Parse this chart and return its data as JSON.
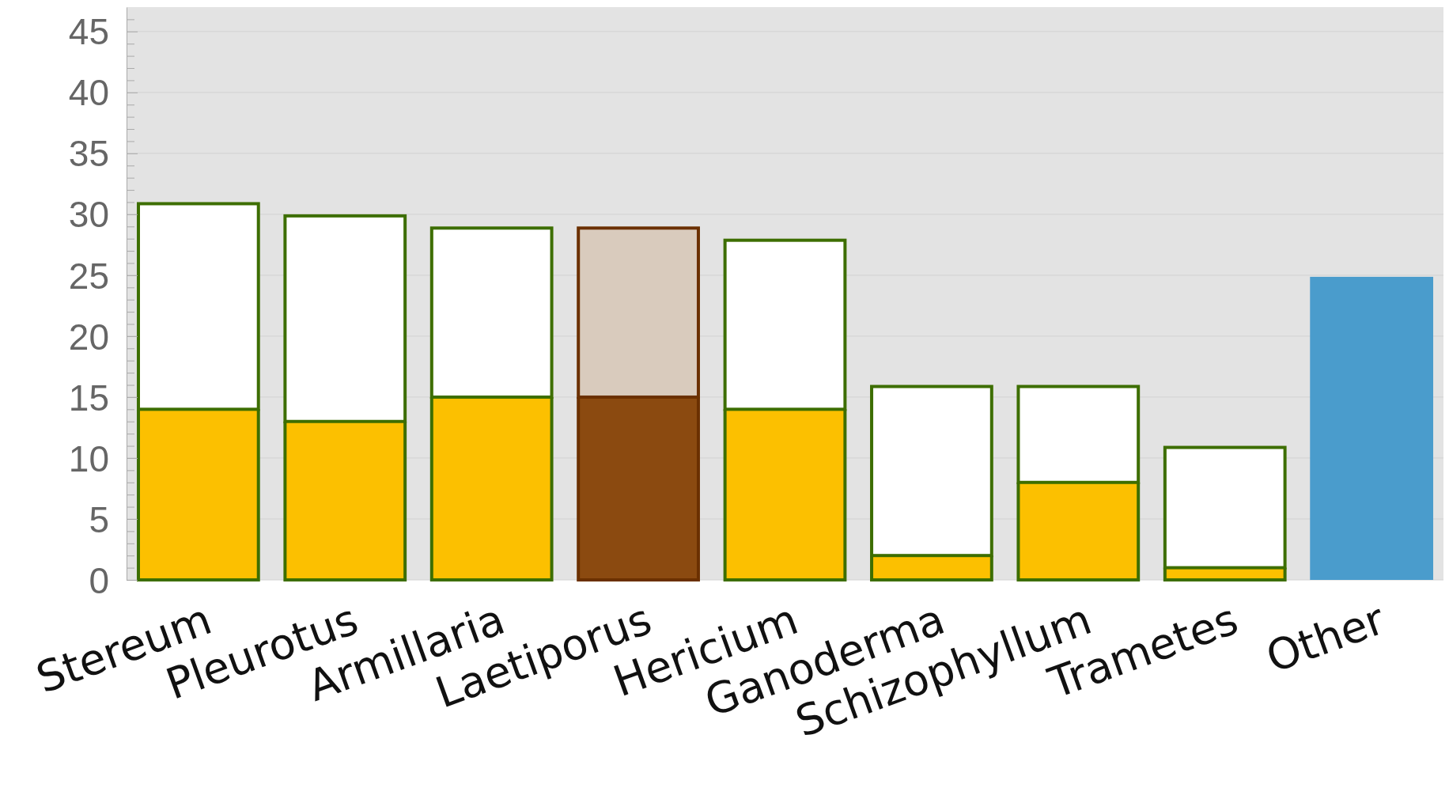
{
  "chart_data": {
    "type": "bar",
    "stacked": true,
    "categories": [
      "Stereum",
      "Pleurotus",
      "Armillaria",
      "Laetiporus",
      "Hericium",
      "Ganoderma",
      "Schizophyllum",
      "Trametes",
      "Other"
    ],
    "series": [
      {
        "colors": [
          "#fcc000",
          "#fcc000",
          "#fcc000",
          "#8b4a10",
          "#fcc000",
          "#fcc000",
          "#fcc000",
          "#fcc000",
          "#4a9ccc"
        ],
        "values": [
          14,
          13,
          15,
          15,
          14,
          2,
          8,
          1,
          25
        ]
      },
      {
        "colors": [
          "#ffffff",
          "#ffffff",
          "#ffffff",
          "#d9cbbd",
          "#ffffff",
          "#ffffff",
          "#ffffff",
          "#ffffff",
          null
        ],
        "values": [
          17,
          17,
          14,
          14,
          14,
          14,
          8,
          10,
          null
        ]
      }
    ],
    "ylim": [
      0,
      47
    ],
    "yticks": [
      0,
      {
        "value": 1,
        "label": null
      },
      {
        "value": 2,
        "label": null
      },
      {
        "value": 3,
        "label": null
      },
      {
        "value": 4,
        "label": null
      },
      5,
      {
        "value": 6,
        "label": null
      },
      {
        "value": 7,
        "label": null
      },
      {
        "value": 8,
        "label": null
      },
      {
        "value": 9,
        "label": null
      },
      10,
      {
        "value": 11,
        "label": null
      },
      {
        "value": 12,
        "label": null
      },
      {
        "value": 13,
        "label": null
      },
      {
        "value": 14,
        "label": null
      },
      15,
      {
        "value": 16,
        "label": null
      },
      {
        "value": 17,
        "label": null
      },
      {
        "value": 18,
        "label": null
      },
      {
        "value": 19,
        "label": null
      },
      20,
      {
        "value": 21,
        "label": null
      },
      {
        "value": 22,
        "label": null
      },
      {
        "value": 23,
        "label": null
      },
      {
        "value": 24,
        "label": null
      },
      25,
      {
        "value": 26,
        "label": null
      },
      {
        "value": 27,
        "label": null
      },
      {
        "value": 28,
        "label": null
      },
      {
        "value": 29,
        "label": null
      },
      30,
      {
        "value": 31,
        "label": null
      },
      {
        "value": 32,
        "label": null
      },
      {
        "value": 33,
        "label": null
      },
      {
        "value": 34,
        "label": null
      },
      35,
      {
        "value": 36,
        "label": null
      },
      {
        "value": 37,
        "label": null
      },
      {
        "value": 38,
        "label": null
      },
      {
        "value": 39,
        "label": null
      },
      40,
      {
        "value": 41,
        "label": null
      },
      {
        "value": 42,
        "label": null
      },
      {
        "value": 43,
        "label": null
      },
      {
        "value": 44,
        "label": null
      },
      45,
      {
        "value": 46,
        "label": null
      }
    ],
    "grid": "y"
  }
}
